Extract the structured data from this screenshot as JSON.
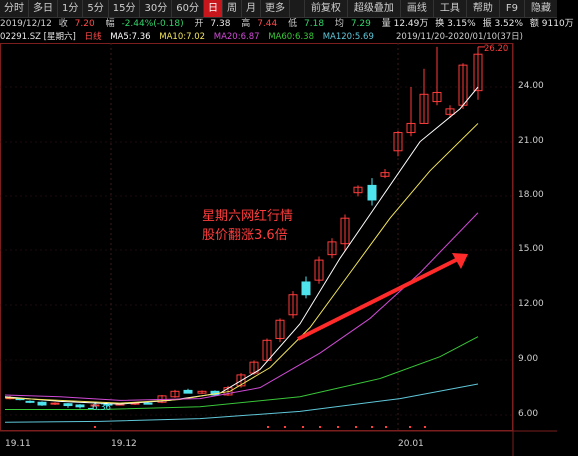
{
  "toolbar": {
    "tabs": [
      "分时",
      "多日",
      "1分",
      "5分",
      "15分",
      "30分",
      "60分",
      "日",
      "周",
      "月",
      "更多"
    ],
    "active": "日",
    "right": [
      "前复权",
      "超级叠加",
      "画线",
      "工具",
      "帮助",
      "F9",
      "隐藏"
    ]
  },
  "quote": {
    "date": "2019/12/12",
    "close_label": "收",
    "close": "7.20",
    "change_label": "幅",
    "change": "-2.44%(-0.18)",
    "open_label": "开",
    "open": "7.38",
    "high_label": "高",
    "high": "7.44",
    "low_label": "低",
    "low": "7.18",
    "avg_label": "均",
    "avg": "7.29",
    "volume": "量 12.49万",
    "turnover": "换 3.15%",
    "volratio": "振 3.52%",
    "amount": "额 9110万"
  },
  "indicators": {
    "code": "02291.SZ [星期六]",
    "period": "日线",
    "ma5": "MA5:7.36",
    "ma10": "MA10:7.02",
    "ma20": "MA20:6.87",
    "ma60": "MA60:6.38",
    "ma120": "MA120:5.69"
  },
  "range_text": "2019/11/20-2020/01/10(37日)",
  "annotation": [
    "星期六网红行情",
    "股价翻涨3.6倍"
  ],
  "price_axis": [
    "24.00",
    "21.00",
    "18.00",
    "15.00",
    "12.00",
    "9.00",
    "6.00"
  ],
  "date_axis": [
    "19.11",
    "19.12",
    "20.01"
  ],
  "high_label": "26.20",
  "low_label": "6.36",
  "colors": {
    "up": "#ff3d3d",
    "down": "#4fe3ee",
    "ma5": "#ffffff",
    "ma10": "#f2e55c",
    "ma20": "#d04bd6",
    "ma60": "#39c639",
    "ma120": "#5fc7d9",
    "arrow": "#ff2a2a"
  }
}
